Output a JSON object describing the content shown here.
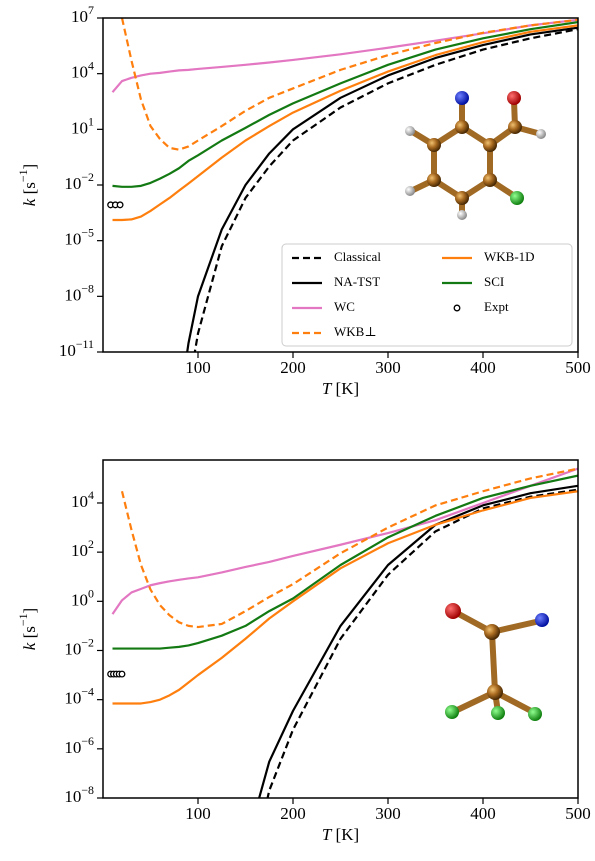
{
  "chart_data": [
    {
      "type": "line",
      "yscale": "log",
      "xlabel": "T [K]",
      "ylabel": "k [s^−1]",
      "legend": "lower right",
      "xlim": [
        0,
        500
      ],
      "xticks": [
        100,
        200,
        300,
        400,
        500
      ],
      "ylim": [
        1e-11,
        10000000
      ],
      "yticks": [
        {
          "value": 1e-11,
          "label": "10^−11"
        },
        {
          "value": 1e-08,
          "label": "10^−8"
        },
        {
          "value": 1e-05,
          "label": "10^−5"
        },
        {
          "value": 0.01,
          "label": "10^−2"
        },
        {
          "value": 10,
          "label": "10^1"
        },
        {
          "value": 10000,
          "label": "10^4"
        },
        {
          "value": 10000000,
          "label": "10^7"
        }
      ],
      "x": [
        10,
        20,
        30,
        40,
        50,
        60,
        70,
        80,
        90,
        100,
        125,
        150,
        175,
        200,
        250,
        300,
        350,
        400,
        450,
        500
      ],
      "series": [
        {
          "name": "Classical",
          "color": "#000000",
          "dash": true,
          "values": [
            null,
            null,
            null,
            null,
            null,
            null,
            null,
            null,
            1e-13,
            1e-10,
            5e-06,
            0.002,
            0.1,
            2.5,
            150,
            3000,
            30000,
            200000,
            800000,
            2500000
          ]
        },
        {
          "name": "NA-TST",
          "color": "#000000",
          "dash": false,
          "values": [
            null,
            null,
            null,
            null,
            null,
            null,
            null,
            1e-14,
            3e-11,
            1e-08,
            4e-05,
            0.01,
            0.5,
            10,
            500,
            8000,
            70000,
            350000,
            1300000,
            3000000
          ]
        },
        {
          "name": "WC",
          "color": "#e377c2",
          "dash": false,
          "values": [
            1000,
            4000,
            6000,
            8000,
            10000,
            11000,
            13000,
            15000,
            16000,
            18000,
            23000,
            30000,
            40000,
            55000,
            110000,
            250000,
            600000,
            1500000,
            4000000,
            8000000
          ]
        },
        {
          "name": "WKB⊥",
          "color": "#ff7f0e",
          "dash": true,
          "values": [
            null,
            10000000,
            50000,
            400,
            15,
            3,
            1,
            0.8,
            1.2,
            2.5,
            15,
            100,
            500,
            1600,
            16000,
            100000,
            450000,
            1600000,
            4000000,
            8000000
          ]
        },
        {
          "name": "WKB-1D",
          "color": "#ff7f0e",
          "dash": false,
          "values": [
            0.00013,
            0.00013,
            0.00014,
            0.0002,
            0.0004,
            0.0009,
            0.002,
            0.005,
            0.012,
            0.03,
            0.3,
            2.5,
            15,
            80,
            1200,
            13000,
            100000,
            500000,
            1800000,
            4000000
          ]
        },
        {
          "name": "SCI",
          "color": "#137a13",
          "dash": false,
          "values": [
            0.009,
            0.008,
            0.008,
            0.009,
            0.013,
            0.022,
            0.04,
            0.08,
            0.2,
            0.4,
            2.5,
            12,
            60,
            250,
            3000,
            30000,
            200000,
            800000,
            2500000,
            6000000
          ]
        },
        {
          "name": "Expt",
          "color": "#000000",
          "marker": "circle-open",
          "x": [
            8,
            13,
            18
          ],
          "values": [
            0.00085,
            0.00085,
            0.00085
          ]
        }
      ]
    },
    {
      "type": "line",
      "yscale": "log",
      "xlabel": "T [K]",
      "ylabel": "k [s^−1]",
      "xlim": [
        0,
        500
      ],
      "xticks": [
        100,
        200,
        300,
        400,
        500
      ],
      "ylim": [
        1e-08,
        560000
      ],
      "yticks": [
        {
          "value": 1e-08,
          "label": "10^−8"
        },
        {
          "value": 1e-06,
          "label": "10^−6"
        },
        {
          "value": 0.0001,
          "label": "10^−4"
        },
        {
          "value": 0.01,
          "label": "10^−2"
        },
        {
          "value": 1,
          "label": "10^0"
        },
        {
          "value": 100,
          "label": "10^2"
        },
        {
          "value": 10000,
          "label": "10^4"
        }
      ],
      "x": [
        10,
        20,
        30,
        40,
        50,
        60,
        70,
        80,
        90,
        100,
        125,
        150,
        175,
        200,
        250,
        300,
        350,
        400,
        450,
        500
      ],
      "series": [
        {
          "color": "#000000",
          "dash": true,
          "values": [
            null,
            null,
            null,
            null,
            null,
            null,
            null,
            null,
            null,
            null,
            null,
            1e-12,
            2e-08,
            6e-06,
            0.03,
            12,
            700,
            6000,
            18000,
            35000
          ]
        },
        {
          "color": "#000000",
          "dash": false,
          "values": [
            null,
            null,
            null,
            null,
            null,
            null,
            null,
            null,
            null,
            null,
            null,
            1e-10,
            3e-07,
            3.5e-05,
            0.1,
            30,
            1300,
            8000,
            25000,
            50000
          ]
        },
        {
          "color": "#e377c2",
          "dash": false,
          "values": [
            0.3,
            1.1,
            2.3,
            3.2,
            4.5,
            5.5,
            6.5,
            7.5,
            8.5,
            9.5,
            15,
            25,
            40,
            70,
            200,
            600,
            2000,
            10000,
            50000,
            250000
          ]
        },
        {
          "color": "#ff7f0e",
          "dash": true,
          "values": [
            null,
            30000,
            800,
            30,
            3,
            0.7,
            0.27,
            0.14,
            0.1,
            0.09,
            0.12,
            0.4,
            1.5,
            5,
            90,
            1000,
            8000,
            30000,
            100000,
            250000
          ]
        },
        {
          "color": "#ff7f0e",
          "dash": false,
          "values": [
            7e-05,
            7e-05,
            7e-05,
            7e-05,
            8e-05,
            0.0001,
            0.00015,
            0.00025,
            0.0005,
            0.001,
            0.005,
            0.03,
            0.2,
            1,
            22,
            230,
            1300,
            5000,
            16000,
            30000
          ]
        },
        {
          "color": "#137a13",
          "dash": false,
          "values": [
            0.012,
            0.012,
            0.012,
            0.012,
            0.012,
            0.012,
            0.013,
            0.014,
            0.016,
            0.02,
            0.04,
            0.1,
            0.4,
            1.3,
            30,
            400,
            3000,
            16000,
            50000,
            130000
          ]
        },
        {
          "color": "#000000",
          "marker": "circle-open",
          "x": [
            8,
            11,
            14,
            17,
            20
          ],
          "values": [
            0.0011,
            0.0011,
            0.0011,
            0.0011,
            0.0011
          ]
        }
      ]
    }
  ]
}
